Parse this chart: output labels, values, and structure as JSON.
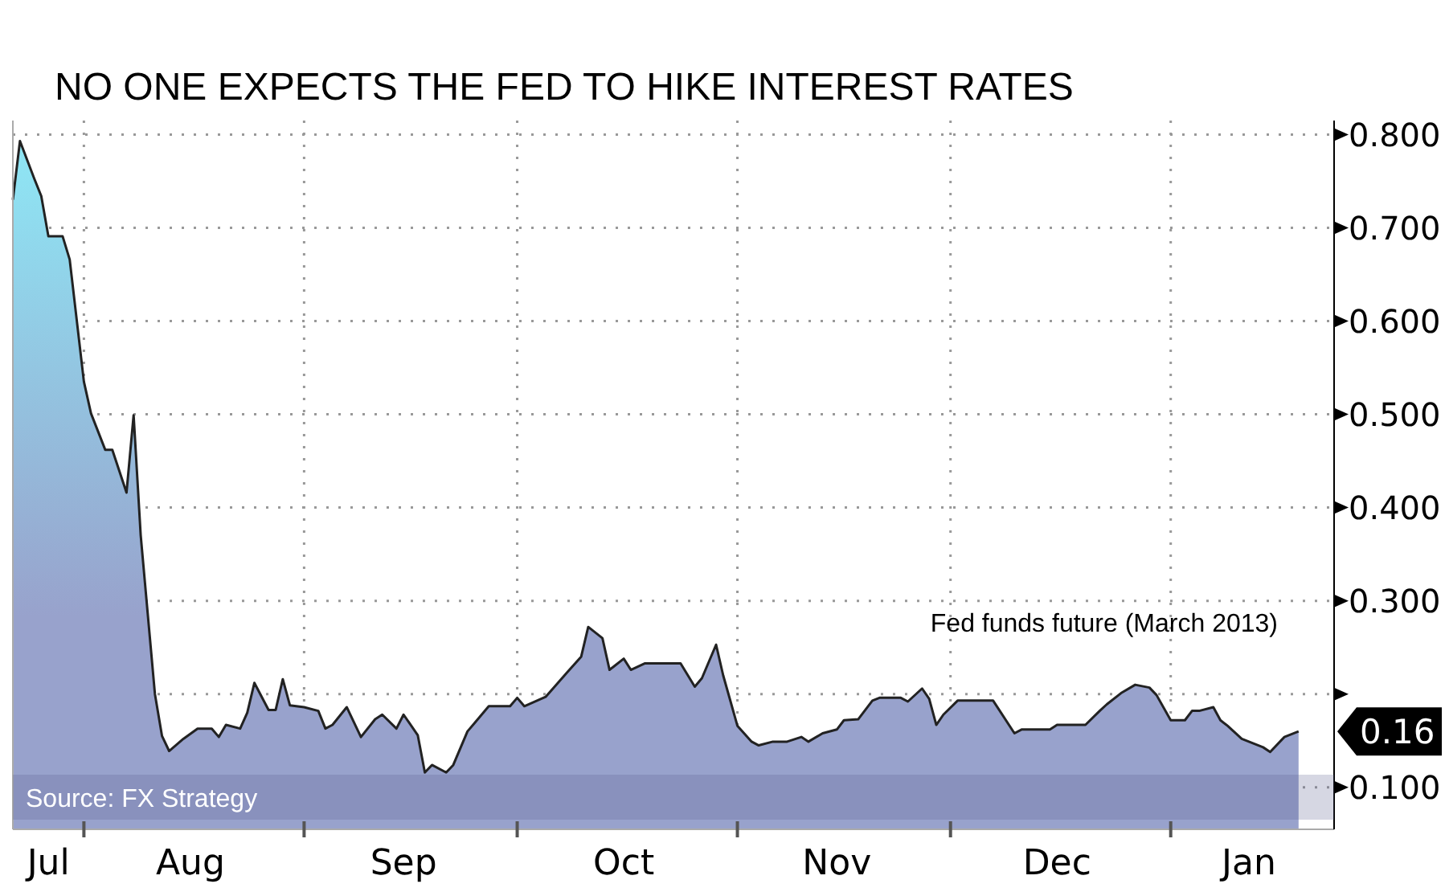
{
  "chart_data": {
    "type": "area",
    "title": "NO ONE EXPECTS THE FED TO HIKE INTEREST RATES",
    "x": [
      "2012-07-22",
      "2012-07-23",
      "2012-07-25",
      "2012-07-26",
      "2012-07-27",
      "2012-07-29",
      "2012-07-30",
      "2012-08-01",
      "2012-08-02",
      "2012-08-04",
      "2012-08-05",
      "2012-08-07",
      "2012-08-08",
      "2012-08-09",
      "2012-08-11",
      "2012-08-12",
      "2012-08-13",
      "2012-08-15",
      "2012-08-17",
      "2012-08-19",
      "2012-08-20",
      "2012-08-21",
      "2012-08-23",
      "2012-08-24",
      "2012-08-25",
      "2012-08-27",
      "2012-08-28",
      "2012-08-29",
      "2012-08-30",
      "2012-09-01",
      "2012-09-03",
      "2012-09-04",
      "2012-09-05",
      "2012-09-07",
      "2012-09-09",
      "2012-09-11",
      "2012-09-12",
      "2012-09-14",
      "2012-09-15",
      "2012-09-17",
      "2012-09-18",
      "2012-09-19",
      "2012-09-21",
      "2012-09-22",
      "2012-09-24",
      "2012-09-25",
      "2012-09-27",
      "2012-09-30",
      "2012-10-01",
      "2012-10-02",
      "2012-10-05",
      "2012-10-08",
      "2012-10-10",
      "2012-10-11",
      "2012-10-13",
      "2012-10-14",
      "2012-10-16",
      "2012-10-17",
      "2012-10-19",
      "2012-10-24",
      "2012-10-26",
      "2012-10-27",
      "2012-10-29",
      "2012-10-30",
      "2012-11-01",
      "2012-11-03",
      "2012-11-04",
      "2012-11-06",
      "2012-11-08",
      "2012-11-10",
      "2012-11-11",
      "2012-11-13",
      "2012-11-15",
      "2012-11-16",
      "2012-11-18",
      "2012-11-20",
      "2012-11-21",
      "2012-11-24",
      "2012-11-25",
      "2012-11-27",
      "2012-11-28",
      "2012-11-29",
      "2012-11-30",
      "2012-12-02",
      "2012-12-07",
      "2012-12-10",
      "2012-12-11",
      "2012-12-15",
      "2012-12-16",
      "2012-12-20",
      "2012-12-22",
      "2012-12-23",
      "2012-12-25",
      "2012-12-27",
      "2012-12-29",
      "2012-12-30",
      "2013-01-01",
      "2013-01-03",
      "2013-01-04",
      "2013-01-05",
      "2013-01-07",
      "2013-01-08",
      "2013-01-09",
      "2013-01-11",
      "2013-01-14",
      "2013-01-15",
      "2013-01-17",
      "2013-01-19"
    ],
    "series": [
      {
        "name": "Fed funds future (March 2013)",
        "color": "#98a2cc",
        "values": [
          0.73,
          0.793,
          0.753,
          0.734,
          0.691,
          0.691,
          0.666,
          0.535,
          0.501,
          0.462,
          0.462,
          0.416,
          0.499,
          0.37,
          0.2,
          0.155,
          0.139,
          0.152,
          0.163,
          0.163,
          0.154,
          0.167,
          0.163,
          0.18,
          0.212,
          0.183,
          0.183,
          0.216,
          0.188,
          0.186,
          0.182,
          0.163,
          0.167,
          0.186,
          0.154,
          0.173,
          0.178,
          0.163,
          0.178,
          0.156,
          0.116,
          0.124,
          0.116,
          0.124,
          0.16,
          0.169,
          0.187,
          0.187,
          0.196,
          0.187,
          0.197,
          0.223,
          0.24,
          0.272,
          0.26,
          0.226,
          0.238,
          0.226,
          0.233,
          0.233,
          0.208,
          0.217,
          0.253,
          0.22,
          0.166,
          0.149,
          0.145,
          0.149,
          0.149,
          0.154,
          0.149,
          0.158,
          0.162,
          0.172,
          0.173,
          0.193,
          0.196,
          0.196,
          0.192,
          0.206,
          0.195,
          0.167,
          0.178,
          0.193,
          0.193,
          0.158,
          0.162,
          0.162,
          0.167,
          0.167,
          0.182,
          0.189,
          0.201,
          0.21,
          0.207,
          0.199,
          0.172,
          0.172,
          0.182,
          0.182,
          0.186,
          0.172,
          0.166,
          0.152,
          0.143,
          0.138,
          0.154,
          0.16
        ]
      }
    ],
    "xlim": [
      "2012-07-22",
      "2013-01-24"
    ],
    "xticks": [
      {
        "value": "2012-07-27",
        "label": "Jul"
      },
      {
        "value": "2012-08-01",
        "label": null
      },
      {
        "value": "2012-08-16",
        "label": "Aug"
      },
      {
        "value": "2012-09-01",
        "label": null
      },
      {
        "value": "2012-09-15",
        "label": "Sep"
      },
      {
        "value": "2012-10-01",
        "label": null
      },
      {
        "value": "2012-10-16",
        "label": "Oct"
      },
      {
        "value": "2012-11-01",
        "label": null
      },
      {
        "value": "2012-11-15",
        "label": "Nov"
      },
      {
        "value": "2012-12-01",
        "label": null
      },
      {
        "value": "2012-12-16",
        "label": "Dec"
      },
      {
        "value": "2013-01-01",
        "label": null
      },
      {
        "value": "2013-01-12",
        "label": "Jan"
      }
    ],
    "ylim": [
      0.055,
      0.815
    ],
    "yticks": [
      {
        "value": 0.1,
        "label": "0.100"
      },
      {
        "value": 0.2,
        "label": null
      },
      {
        "value": 0.3,
        "label": "0.300"
      },
      {
        "value": 0.4,
        "label": "0.400"
      },
      {
        "value": 0.5,
        "label": "0.500"
      },
      {
        "value": 0.6,
        "label": "0.600"
      },
      {
        "value": 0.7,
        "label": "0.700"
      },
      {
        "value": 0.8,
        "label": "0.800"
      }
    ],
    "grid": true,
    "annotations": [
      "Source: FX Strategy",
      {
        "text": "0.16",
        "x": "2013-01-19",
        "y": 0.16
      }
    ]
  }
}
